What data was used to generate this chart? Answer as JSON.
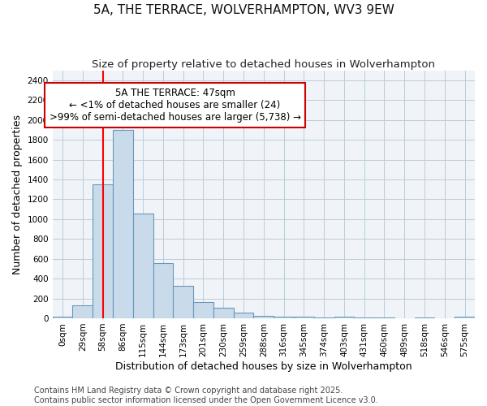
{
  "title": "5A, THE TERRACE, WOLVERHAMPTON, WV3 9EW",
  "subtitle": "Size of property relative to detached houses in Wolverhampton",
  "xlabel": "Distribution of detached houses by size in Wolverhampton",
  "ylabel": "Number of detached properties",
  "bin_labels": [
    "0sqm",
    "29sqm",
    "58sqm",
    "86sqm",
    "115sqm",
    "144sqm",
    "173sqm",
    "201sqm",
    "230sqm",
    "259sqm",
    "288sqm",
    "316sqm",
    "345sqm",
    "374sqm",
    "403sqm",
    "431sqm",
    "460sqm",
    "489sqm",
    "518sqm",
    "546sqm",
    "575sqm"
  ],
  "bar_heights": [
    15,
    130,
    1350,
    1900,
    1060,
    560,
    330,
    165,
    110,
    60,
    25,
    20,
    15,
    10,
    15,
    5,
    5,
    0,
    5,
    0,
    15
  ],
  "bar_color": "#c9daea",
  "bar_edge_color": "#6699bb",
  "bar_edge_width": 0.8,
  "grid_color": "#bbccd8",
  "axes_bg_color": "#f0f4f8",
  "fig_bg_color": "#ffffff",
  "red_line_x": 2.0,
  "annotation_text": "5A THE TERRACE: 47sqm\n← <1% of detached houses are smaller (24)\n>99% of semi-detached houses are larger (5,738) →",
  "annotation_box_color": "#ffffff",
  "annotation_box_edge": "#cc0000",
  "ylim": [
    0,
    2500
  ],
  "yticks": [
    0,
    200,
    400,
    600,
    800,
    1000,
    1200,
    1400,
    1600,
    1800,
    2000,
    2200,
    2400
  ],
  "footer_line1": "Contains HM Land Registry data © Crown copyright and database right 2025.",
  "footer_line2": "Contains public sector information licensed under the Open Government Licence v3.0.",
  "title_fontsize": 11,
  "subtitle_fontsize": 9.5,
  "axis_label_fontsize": 9,
  "tick_fontsize": 7.5,
  "annotation_fontsize": 8.5,
  "footer_fontsize": 7
}
